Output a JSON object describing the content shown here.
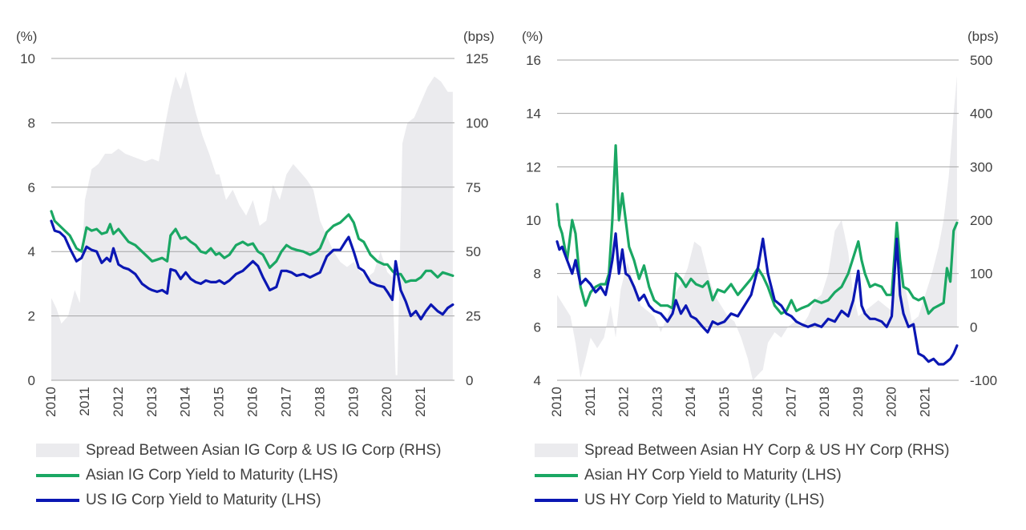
{
  "colors": {
    "spread": "#ebebee",
    "asian": "#1aa763",
    "us": "#0b17b3",
    "grid": "#a6a6a6",
    "text": "#404040"
  },
  "chart_data": [
    {
      "type": "line",
      "series_type_spread": "area",
      "y_unit_left": "(%)",
      "y_unit_right": "(bps)",
      "ylim_left": [
        0,
        10
      ],
      "ylim_right": [
        0,
        125
      ],
      "y_ticks_left": [
        "0",
        "2",
        "4",
        "6",
        "8",
        "10"
      ],
      "y_ticks_right": [
        "0",
        "25",
        "50",
        "75",
        "100",
        "125"
      ],
      "x_ticks": [
        "2010",
        "2011",
        "2012",
        "2013",
        "2014",
        "2015",
        "2016",
        "2017",
        "2018",
        "2019",
        "2020",
        "2021"
      ],
      "xlim": [
        2010.0,
        2022.0
      ],
      "grid": true,
      "legend_position": "bottom",
      "series": [
        {
          "name": "Spread Between Asian IG Corp & US IG Corp (RHS)",
          "axis": "right",
          "type": "area",
          "x": [
            2010.0,
            2010.15,
            2010.3,
            2010.5,
            2010.7,
            2010.85,
            2011.0,
            2011.2,
            2011.4,
            2011.6,
            2011.8,
            2012.0,
            2012.2,
            2012.4,
            2012.6,
            2012.8,
            2013.0,
            2013.2,
            2013.4,
            2013.55,
            2013.7,
            2013.85,
            2014.0,
            2014.15,
            2014.3,
            2014.5,
            2014.7,
            2014.9,
            2015.0,
            2015.2,
            2015.4,
            2015.6,
            2015.8,
            2016.0,
            2016.2,
            2016.4,
            2016.6,
            2016.8,
            2017.0,
            2017.2,
            2017.4,
            2017.6,
            2017.8,
            2018.0,
            2018.2,
            2018.4,
            2018.6,
            2018.8,
            2019.0,
            2019.2,
            2019.4,
            2019.6,
            2019.8,
            2020.0,
            2020.15,
            2020.25,
            2020.3,
            2020.45,
            2020.6,
            2020.8,
            2021.0,
            2021.2,
            2021.4,
            2021.6,
            2021.8,
            2021.95
          ],
          "values": [
            32,
            28,
            22,
            25,
            35,
            30,
            70,
            82,
            84,
            88,
            88,
            90,
            88,
            87,
            86,
            85,
            86,
            85,
            100,
            110,
            118,
            113,
            120,
            112,
            104,
            95,
            88,
            80,
            80,
            70,
            74,
            68,
            64,
            70,
            60,
            62,
            76,
            70,
            80,
            84,
            81,
            78,
            74,
            62,
            56,
            50,
            46,
            44,
            46,
            42,
            40,
            42,
            50,
            42,
            40,
            2,
            2,
            92,
            100,
            102,
            108,
            114,
            118,
            116,
            112,
            112
          ]
        },
        {
          "name": "Asian IG Corp Yield to Maturity  (LHS)",
          "axis": "left",
          "type": "line",
          "x": [
            2010.0,
            2010.1,
            2010.25,
            2010.4,
            2010.55,
            2010.75,
            2010.9,
            2011.05,
            2011.2,
            2011.35,
            2011.5,
            2011.65,
            2011.75,
            2011.85,
            2012.0,
            2012.15,
            2012.3,
            2012.5,
            2012.7,
            2012.9,
            2013.0,
            2013.15,
            2013.3,
            2013.45,
            2013.55,
            2013.7,
            2013.85,
            2014.0,
            2014.15,
            2014.3,
            2014.45,
            2014.6,
            2014.75,
            2014.9,
            2015.0,
            2015.15,
            2015.3,
            2015.5,
            2015.7,
            2015.85,
            2016.0,
            2016.15,
            2016.3,
            2016.5,
            2016.7,
            2016.85,
            2017.0,
            2017.15,
            2017.3,
            2017.5,
            2017.7,
            2017.9,
            2018.0,
            2018.2,
            2018.4,
            2018.6,
            2018.75,
            2018.85,
            2019.0,
            2019.15,
            2019.3,
            2019.5,
            2019.7,
            2019.9,
            2020.0,
            2020.15,
            2020.25,
            2020.4,
            2020.55,
            2020.7,
            2020.85,
            2021.0,
            2021.15,
            2021.3,
            2021.5,
            2021.65,
            2021.8,
            2021.95
          ],
          "values": [
            5.25,
            4.95,
            4.8,
            4.65,
            4.5,
            4.1,
            4.0,
            4.75,
            4.65,
            4.7,
            4.55,
            4.6,
            4.85,
            4.55,
            4.7,
            4.5,
            4.3,
            4.2,
            4.0,
            3.8,
            3.7,
            3.75,
            3.8,
            3.7,
            4.5,
            4.7,
            4.4,
            4.45,
            4.3,
            4.2,
            4.0,
            3.95,
            4.1,
            3.9,
            3.95,
            3.8,
            3.9,
            4.2,
            4.3,
            4.2,
            4.25,
            4.0,
            3.9,
            3.5,
            3.7,
            4.0,
            4.2,
            4.1,
            4.05,
            4.0,
            3.9,
            4.0,
            4.1,
            4.6,
            4.8,
            4.9,
            5.05,
            5.15,
            4.9,
            4.4,
            4.3,
            3.9,
            3.7,
            3.6,
            3.6,
            3.4,
            3.3,
            3.3,
            3.05,
            3.1,
            3.1,
            3.2,
            3.4,
            3.4,
            3.2,
            3.35,
            3.3,
            3.25
          ]
        },
        {
          "name": "US IG Corp Yield to Maturity  (LHS)",
          "axis": "left",
          "type": "line",
          "x": [
            2010.0,
            2010.1,
            2010.25,
            2010.4,
            2010.55,
            2010.75,
            2010.9,
            2011.05,
            2011.2,
            2011.35,
            2011.5,
            2011.65,
            2011.75,
            2011.85,
            2012.0,
            2012.15,
            2012.3,
            2012.5,
            2012.7,
            2012.9,
            2013.0,
            2013.15,
            2013.3,
            2013.45,
            2013.55,
            2013.7,
            2013.85,
            2014.0,
            2014.15,
            2014.3,
            2014.45,
            2014.6,
            2014.75,
            2014.9,
            2015.0,
            2015.15,
            2015.3,
            2015.5,
            2015.7,
            2015.85,
            2016.0,
            2016.15,
            2016.3,
            2016.5,
            2016.7,
            2016.85,
            2017.0,
            2017.15,
            2017.3,
            2017.5,
            2017.7,
            2017.9,
            2018.0,
            2018.2,
            2018.4,
            2018.6,
            2018.75,
            2018.85,
            2019.0,
            2019.15,
            2019.3,
            2019.5,
            2019.7,
            2019.9,
            2020.0,
            2020.15,
            2020.25,
            2020.4,
            2020.55,
            2020.7,
            2020.85,
            2021.0,
            2021.15,
            2021.3,
            2021.5,
            2021.65,
            2021.8,
            2021.95
          ],
          "values": [
            4.95,
            4.65,
            4.6,
            4.45,
            4.1,
            3.7,
            3.8,
            4.15,
            4.05,
            4.0,
            3.65,
            3.8,
            3.7,
            4.1,
            3.6,
            3.5,
            3.45,
            3.3,
            3.0,
            2.85,
            2.8,
            2.75,
            2.8,
            2.7,
            3.45,
            3.4,
            3.15,
            3.35,
            3.15,
            3.05,
            3.0,
            3.1,
            3.05,
            3.05,
            3.1,
            3.0,
            3.1,
            3.3,
            3.4,
            3.55,
            3.7,
            3.55,
            3.2,
            2.8,
            2.9,
            3.4,
            3.4,
            3.35,
            3.25,
            3.3,
            3.2,
            3.3,
            3.35,
            3.85,
            4.05,
            4.05,
            4.3,
            4.45,
            4.0,
            3.5,
            3.4,
            3.05,
            2.95,
            2.9,
            2.75,
            2.5,
            3.7,
            2.8,
            2.45,
            2.0,
            2.15,
            1.9,
            2.15,
            2.35,
            2.15,
            2.05,
            2.25,
            2.35
          ]
        }
      ]
    },
    {
      "type": "line",
      "series_type_spread": "area",
      "y_unit_left": "(%)",
      "y_unit_right": "(bps)",
      "ylim_left": [
        4,
        16
      ],
      "ylim_right": [
        -100,
        500
      ],
      "y_ticks_left": [
        "4",
        "6",
        "8",
        "10",
        "12",
        "14",
        "16"
      ],
      "y_ticks_right": [
        "-100",
        "0",
        "100",
        "200",
        "300",
        "400",
        "500"
      ],
      "x_ticks": [
        "2010",
        "2011",
        "2012",
        "2013",
        "2014",
        "2015",
        "2016",
        "2017",
        "2018",
        "2019",
        "2020",
        "2021"
      ],
      "xlim": [
        2010.0,
        2022.0
      ],
      "grid": true,
      "legend_position": "bottom",
      "series": [
        {
          "name": "Spread Between Asian HY Corp & US HY Corp (RHS)",
          "axis": "right",
          "type": "area",
          "x": [
            2010.0,
            2010.2,
            2010.4,
            2010.55,
            2010.7,
            2010.85,
            2011.0,
            2011.2,
            2011.4,
            2011.6,
            2011.75,
            2011.9,
            2012.1,
            2012.3,
            2012.5,
            2012.7,
            2012.9,
            2013.1,
            2013.3,
            2013.5,
            2013.7,
            2013.9,
            2014.1,
            2014.3,
            2014.5,
            2014.7,
            2014.9,
            2015.1,
            2015.3,
            2015.5,
            2015.7,
            2015.85,
            2016.0,
            2016.15,
            2016.3,
            2016.5,
            2016.7,
            2016.9,
            2017.1,
            2017.3,
            2017.5,
            2017.7,
            2017.9,
            2018.1,
            2018.3,
            2018.5,
            2018.7,
            2018.85,
            2019.0,
            2019.2,
            2019.4,
            2019.6,
            2019.8,
            2020.0,
            2020.15,
            2020.3,
            2020.45,
            2020.6,
            2020.8,
            2021.0,
            2021.2,
            2021.4,
            2021.55,
            2021.7,
            2021.85,
            2021.95
          ],
          "values": [
            60,
            40,
            20,
            -30,
            -95,
            -60,
            -20,
            -40,
            -20,
            40,
            -20,
            70,
            120,
            80,
            40,
            30,
            20,
            -10,
            20,
            60,
            80,
            110,
            160,
            150,
            100,
            60,
            40,
            20,
            10,
            -20,
            -60,
            -100,
            -90,
            -80,
            -30,
            -10,
            -20,
            0,
            10,
            0,
            20,
            50,
            60,
            100,
            180,
            200,
            140,
            60,
            20,
            30,
            40,
            50,
            40,
            30,
            80,
            100,
            60,
            10,
            20,
            60,
            100,
            150,
            200,
            280,
            400,
            470
          ]
        },
        {
          "name": "Asian HY Corp Yield to Maturity  (LHS)",
          "axis": "left",
          "type": "line",
          "x": [
            2010.0,
            2010.07,
            2010.15,
            2010.3,
            2010.45,
            2010.55,
            2010.7,
            2010.85,
            2011.0,
            2011.15,
            2011.3,
            2011.45,
            2011.55,
            2011.65,
            2011.75,
            2011.85,
            2011.95,
            2012.05,
            2012.15,
            2012.3,
            2012.45,
            2012.6,
            2012.75,
            2012.9,
            2013.1,
            2013.3,
            2013.45,
            2013.55,
            2013.7,
            2013.85,
            2014.0,
            2014.15,
            2014.35,
            2014.5,
            2014.65,
            2014.8,
            2015.0,
            2015.2,
            2015.4,
            2015.6,
            2015.8,
            2016.0,
            2016.15,
            2016.3,
            2016.5,
            2016.7,
            2016.85,
            2017.0,
            2017.15,
            2017.3,
            2017.5,
            2017.7,
            2017.9,
            2018.1,
            2018.3,
            2018.5,
            2018.7,
            2018.85,
            2019.0,
            2019.1,
            2019.2,
            2019.35,
            2019.5,
            2019.7,
            2019.85,
            2020.0,
            2020.15,
            2020.25,
            2020.35,
            2020.5,
            2020.65,
            2020.8,
            2020.95,
            2021.1,
            2021.25,
            2021.4,
            2021.55,
            2021.65,
            2021.75,
            2021.85,
            2021.95
          ],
          "values": [
            10.6,
            9.8,
            9.5,
            8.5,
            10.0,
            9.5,
            7.5,
            6.8,
            7.3,
            7.5,
            7.6,
            7.6,
            8.0,
            10.0,
            12.8,
            10.0,
            11.0,
            10.0,
            9.0,
            8.5,
            7.8,
            8.3,
            7.5,
            7.0,
            6.8,
            6.8,
            6.7,
            8.0,
            7.8,
            7.5,
            7.8,
            7.6,
            7.5,
            7.7,
            7.0,
            7.4,
            7.3,
            7.6,
            7.2,
            7.5,
            7.8,
            8.2,
            7.9,
            7.5,
            6.8,
            6.5,
            6.6,
            7.0,
            6.6,
            6.7,
            6.8,
            7.0,
            6.9,
            7.0,
            7.3,
            7.5,
            8.0,
            8.6,
            9.2,
            8.5,
            8.0,
            7.5,
            7.6,
            7.5,
            7.2,
            7.2,
            9.9,
            8.5,
            7.5,
            7.4,
            7.1,
            7.0,
            7.1,
            6.5,
            6.7,
            6.8,
            6.9,
            8.2,
            7.7,
            9.6,
            9.9
          ]
        },
        {
          "name": "US HY Corp Yield to Maturity  (LHS)",
          "axis": "left",
          "type": "line",
          "x": [
            2010.0,
            2010.07,
            2010.15,
            2010.3,
            2010.45,
            2010.55,
            2010.7,
            2010.85,
            2011.0,
            2011.15,
            2011.3,
            2011.45,
            2011.55,
            2011.65,
            2011.75,
            2011.85,
            2011.95,
            2012.05,
            2012.15,
            2012.3,
            2012.45,
            2012.6,
            2012.75,
            2012.9,
            2013.1,
            2013.3,
            2013.45,
            2013.55,
            2013.7,
            2013.85,
            2014.0,
            2014.15,
            2014.35,
            2014.5,
            2014.65,
            2014.8,
            2015.0,
            2015.2,
            2015.4,
            2015.6,
            2015.8,
            2016.0,
            2016.15,
            2016.3,
            2016.5,
            2016.7,
            2016.85,
            2017.0,
            2017.15,
            2017.3,
            2017.5,
            2017.7,
            2017.9,
            2018.1,
            2018.3,
            2018.5,
            2018.7,
            2018.85,
            2019.0,
            2019.1,
            2019.2,
            2019.35,
            2019.5,
            2019.7,
            2019.85,
            2020.0,
            2020.15,
            2020.25,
            2020.35,
            2020.5,
            2020.65,
            2020.8,
            2020.95,
            2021.1,
            2021.25,
            2021.4,
            2021.55,
            2021.65,
            2021.75,
            2021.85,
            2021.95
          ],
          "values": [
            9.2,
            8.9,
            9.0,
            8.5,
            8.0,
            8.5,
            7.6,
            7.8,
            7.6,
            7.3,
            7.5,
            7.2,
            7.8,
            8.5,
            9.5,
            8.0,
            8.9,
            8.0,
            7.9,
            7.5,
            7.0,
            7.2,
            6.8,
            6.6,
            6.5,
            6.2,
            6.5,
            7.0,
            6.5,
            6.8,
            6.4,
            6.3,
            6.0,
            5.8,
            6.2,
            6.1,
            6.2,
            6.5,
            6.4,
            6.8,
            7.2,
            8.2,
            9.3,
            8.0,
            7.0,
            6.8,
            6.5,
            6.4,
            6.2,
            6.1,
            6.0,
            6.1,
            6.0,
            6.3,
            6.2,
            6.6,
            6.4,
            7.0,
            8.1,
            6.8,
            6.5,
            6.3,
            6.3,
            6.2,
            6.0,
            6.4,
            9.3,
            7.2,
            6.5,
            6.0,
            6.1,
            5.0,
            4.9,
            4.7,
            4.8,
            4.6,
            4.6,
            4.7,
            4.8,
            5.0,
            5.3
          ]
        }
      ]
    }
  ]
}
